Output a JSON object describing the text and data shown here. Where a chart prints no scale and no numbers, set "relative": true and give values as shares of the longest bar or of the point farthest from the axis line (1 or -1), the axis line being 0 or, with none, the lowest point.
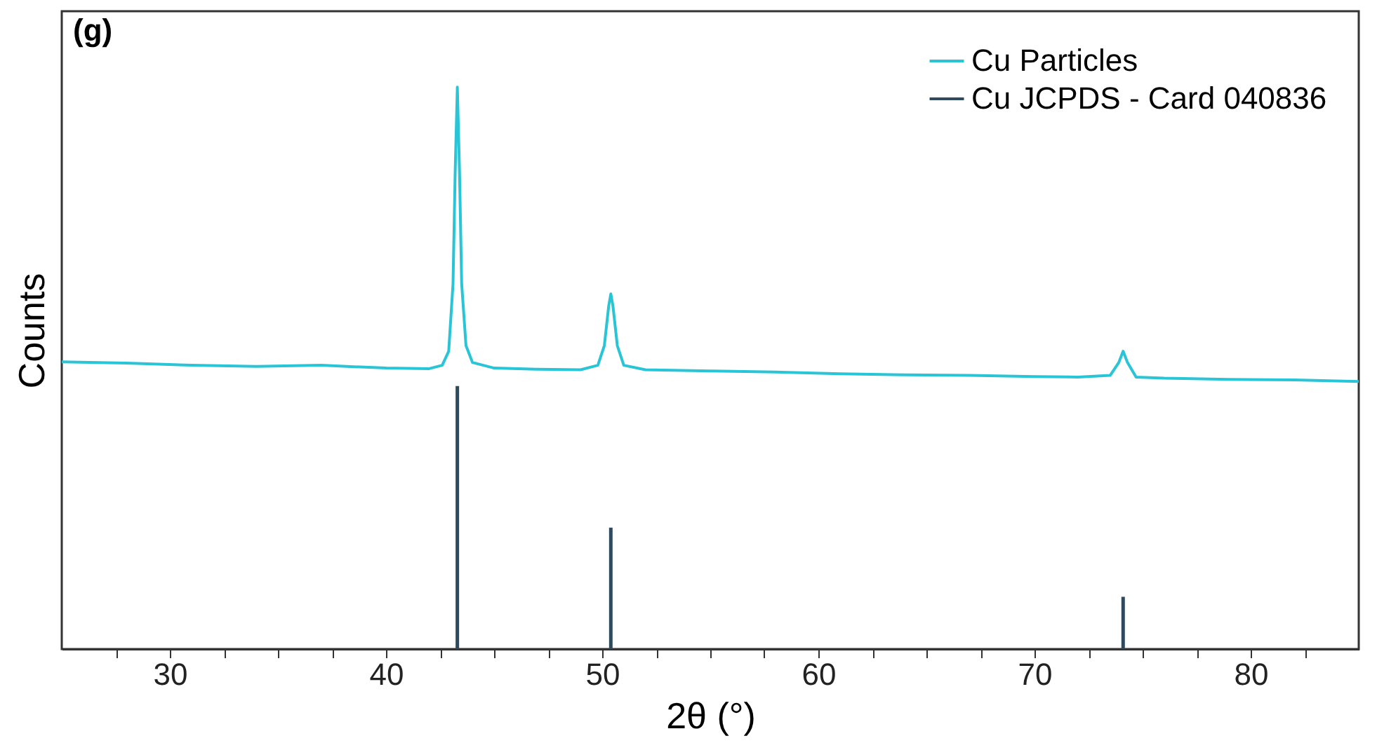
{
  "chart_data": {
    "type": "line",
    "xlabel": "2θ (°)",
    "ylabel": "Counts",
    "relative": true,
    "tick_labels": "x",
    "grid": false,
    "legend": "top right",
    "marker": "none",
    "line_style": "solid",
    "annotations": [
      "(g)"
    ],
    "xlim": [
      25,
      85
    ],
    "xticks": [
      {
        "value": 27.5,
        "label": null
      },
      30,
      {
        "value": 32.5,
        "label": null
      },
      {
        "value": 35,
        "label": null
      },
      {
        "value": 37.5,
        "label": null
      },
      40,
      {
        "value": 42.5,
        "label": null
      },
      {
        "value": 45,
        "label": null
      },
      {
        "value": 47.5,
        "label": null
      },
      50,
      {
        "value": 52.5,
        "label": null
      },
      {
        "value": 55,
        "label": null
      },
      {
        "value": 57.5,
        "label": null
      },
      60,
      {
        "value": 62.5,
        "label": null
      },
      {
        "value": 65,
        "label": null
      },
      {
        "value": 67.5,
        "label": null
      },
      70,
      {
        "value": 72.5,
        "label": null
      },
      {
        "value": 75,
        "label": null
      },
      {
        "value": 77.5,
        "label": null
      },
      80,
      {
        "value": 82.5,
        "label": null
      }
    ],
    "series": [
      {
        "name": "Cu Particles",
        "color": "#29c5d6",
        "x": [
          25,
          28,
          31,
          34,
          37,
          40,
          42,
          42.6,
          42.9,
          43.1,
          43.2,
          43.3,
          43.4,
          43.5,
          43.7,
          44,
          45,
          47,
          49,
          49.8,
          50.1,
          50.3,
          50.4,
          50.5,
          50.7,
          51,
          52,
          55,
          58,
          61,
          64,
          67,
          70,
          72,
          73.5,
          73.9,
          74.1,
          74.3,
          74.7,
          76,
          79,
          82,
          85
        ],
        "values": [
          0.511,
          0.509,
          0.505,
          0.503,
          0.505,
          0.5,
          0.499,
          0.505,
          0.53,
          0.65,
          0.85,
          1.0,
          0.85,
          0.65,
          0.54,
          0.51,
          0.5,
          0.498,
          0.497,
          0.505,
          0.54,
          0.61,
          0.632,
          0.61,
          0.54,
          0.505,
          0.497,
          0.495,
          0.493,
          0.49,
          0.488,
          0.487,
          0.485,
          0.484,
          0.487,
          0.51,
          0.53,
          0.51,
          0.484,
          0.482,
          0.48,
          0.479,
          0.476
        ]
      },
      {
        "name": "Cu JCPDS - Card 040836",
        "color": "#2e4a5e",
        "type": "bar",
        "x": [
          43.3,
          50.4,
          74.1
        ],
        "values": [
          0.468,
          0.216,
          0.093
        ]
      }
    ]
  }
}
